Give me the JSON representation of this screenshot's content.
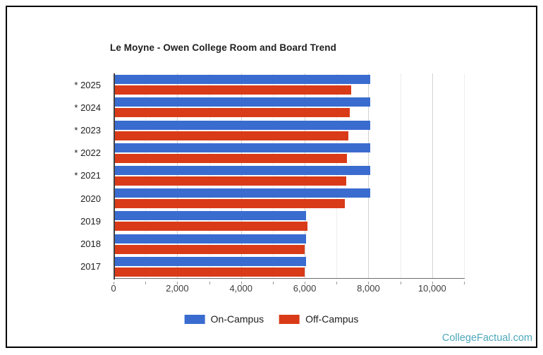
{
  "title": "Le Moyne - Owen College Room and Board Trend",
  "watermark": {
    "label": "CollegeFactual.com",
    "color": "#4da8bb"
  },
  "legend": {
    "items": [
      {
        "label": "On-Campus",
        "color": "#3a6cd0"
      },
      {
        "label": "Off-Campus",
        "color": "#d93b18"
      }
    ]
  },
  "chart_data": {
    "type": "bar",
    "orientation": "horizontal",
    "title": "Le Moyne - Owen College Room and Board Trend",
    "categories": [
      "* 2025",
      "* 2024",
      "* 2023",
      "* 2022",
      "* 2021",
      "2020",
      "2019",
      "2018",
      "2017"
    ],
    "series": [
      {
        "name": "On-Campus",
        "color": "#3a6cd0",
        "values": [
          8050,
          8050,
          8050,
          8050,
          8050,
          8050,
          6050,
          6050,
          6050
        ]
      },
      {
        "name": "Off-Campus",
        "color": "#d93b18",
        "values": [
          7450,
          7410,
          7380,
          7330,
          7310,
          7260,
          6090,
          6000,
          6000
        ]
      }
    ],
    "xlim": [
      0,
      11000
    ],
    "x_minor_step": 1000,
    "x_tick_labels": [
      {
        "value": 0,
        "label": "0"
      },
      {
        "value": 2000,
        "label": "2,000"
      },
      {
        "value": 4000,
        "label": "4,000"
      },
      {
        "value": 6000,
        "label": "6,000"
      },
      {
        "value": 8000,
        "label": "8,000"
      },
      {
        "value": 10000,
        "label": "10,000"
      }
    ],
    "grid": "on",
    "legend_position": "bottom"
  }
}
